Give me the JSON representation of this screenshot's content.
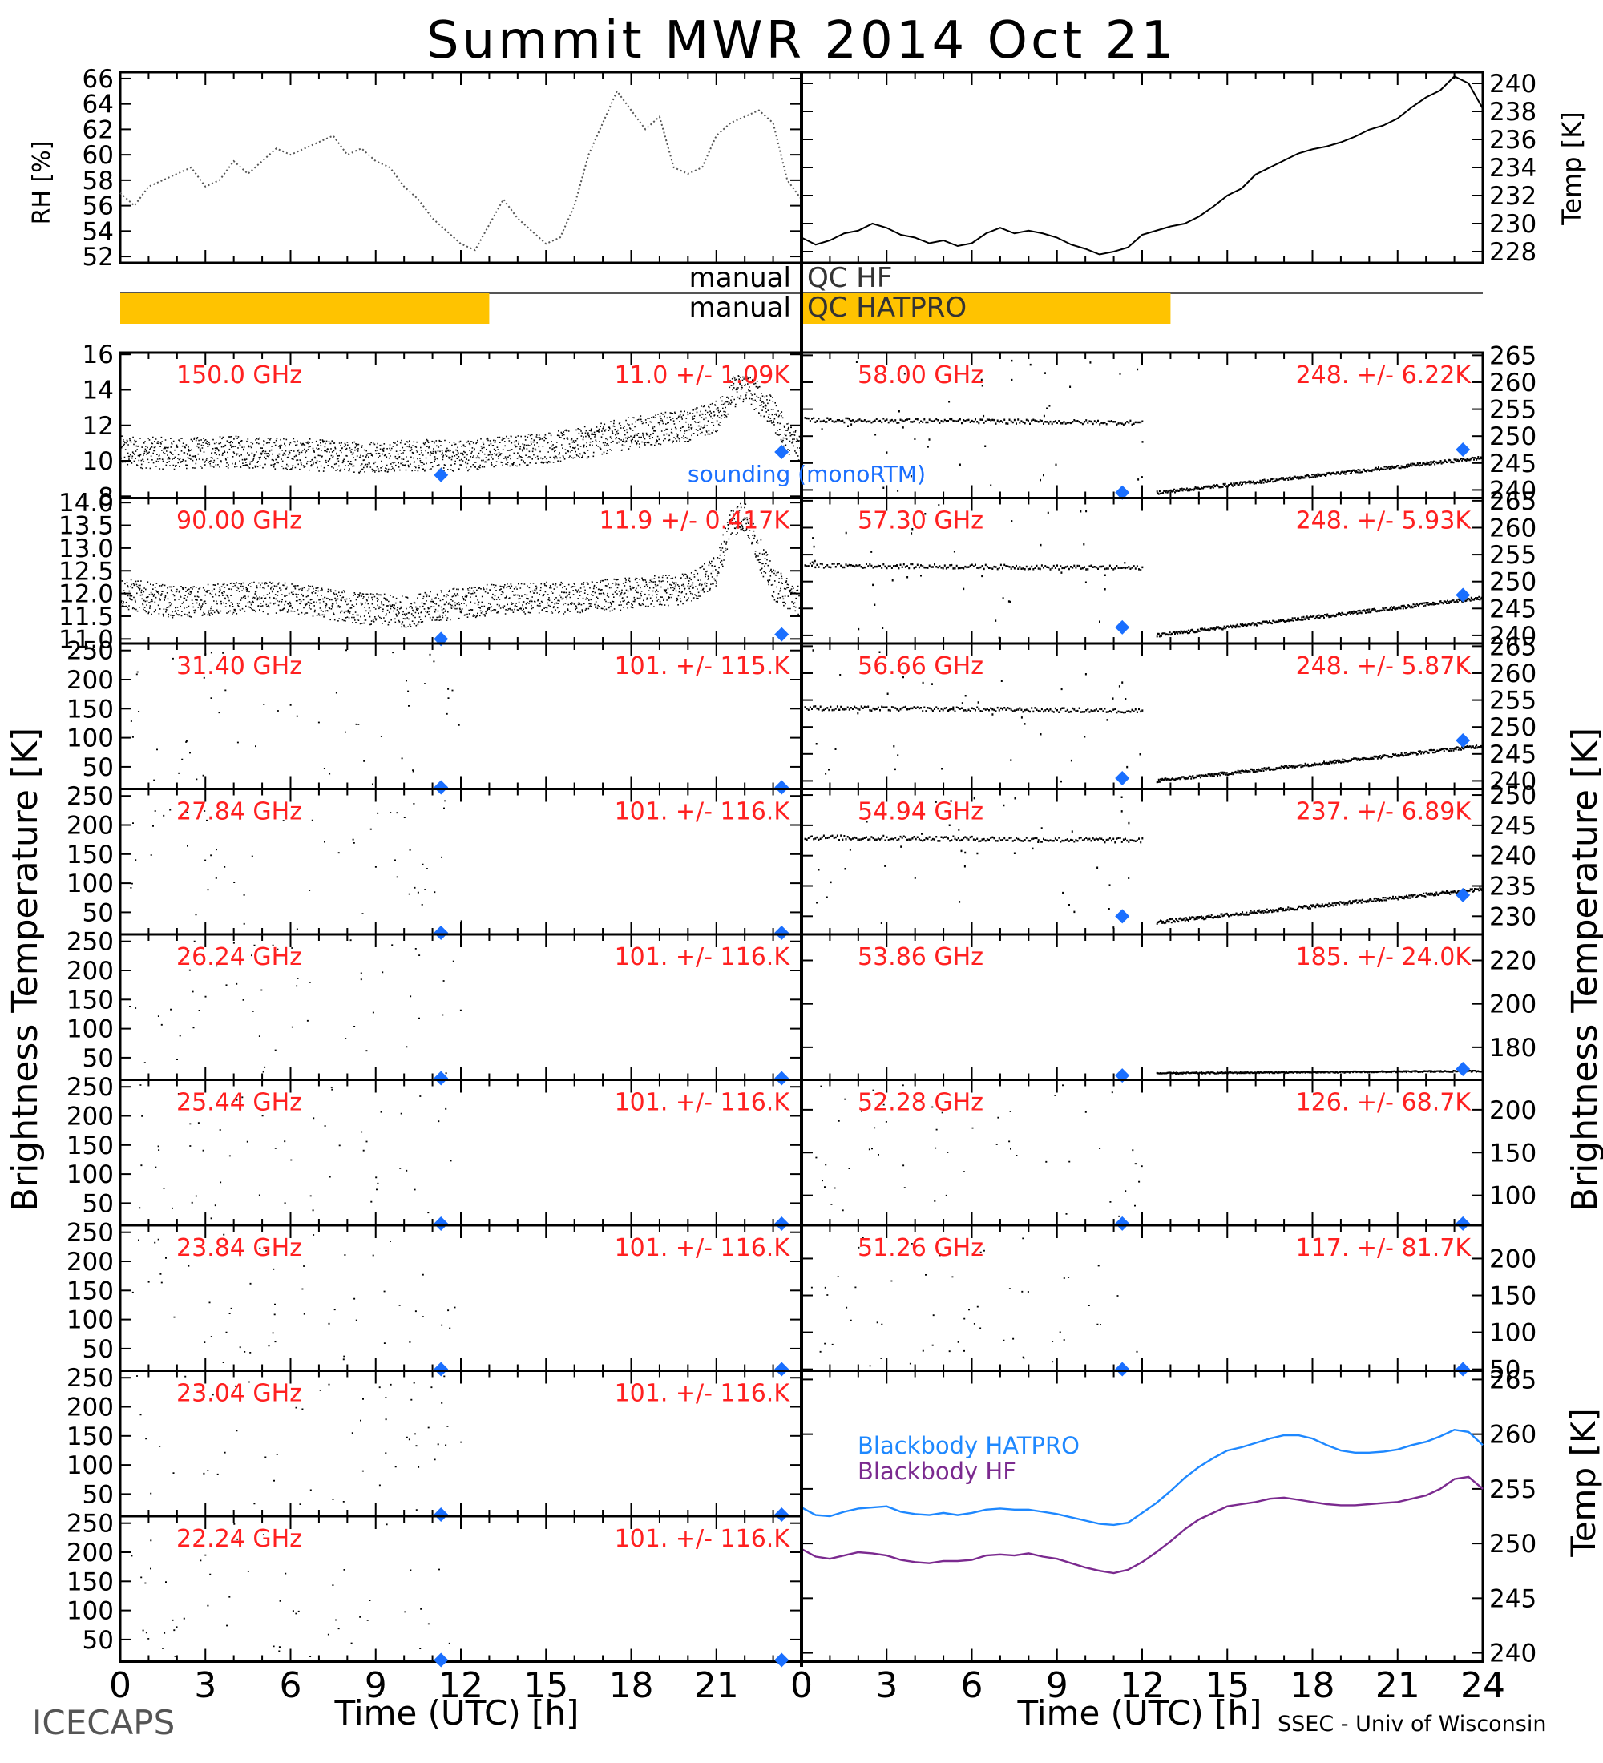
{
  "title": "Summit MWR 2014 Oct 21",
  "footer": {
    "left": "ICECAPS",
    "right": "SSEC - Univ of Wisconsin"
  },
  "colors": {
    "stats": "#ff2020",
    "sounding": "#1a6fff",
    "qc_bar": "#ffc300",
    "bb_hatpro": "#1e88ff",
    "bb_hf": "#7b2a8f",
    "data": "#000000"
  },
  "labels": {
    "ylabel_left": "Brightness Temperature [K]",
    "ylabel_right": "Brightness Temperature [K]",
    "xlabel": "Time (UTC) [h]",
    "rh_label": "RH [%]",
    "temp_label": "Temp [K]",
    "bb_temp_label": "Temp [K]",
    "sounding_label": "sounding (monoRTM)",
    "bb_hatpro_label": "Blackbody HATPRO",
    "bb_hf_label": "Blackbody HF"
  },
  "qc": {
    "hf": {
      "prefix": "manual",
      "label": "QC HF",
      "flag_ranges": []
    },
    "hatpro": {
      "prefix": "manual",
      "label": "QC HATPRO",
      "flag_ranges": [
        [
          0,
          13
        ]
      ]
    }
  },
  "chart_data": [
    {
      "type": "line",
      "panel": "rh",
      "ylabel": "RH [%]",
      "xlim": [
        0,
        24
      ],
      "ylim": [
        51.5,
        66.5
      ],
      "yticks": [
        52,
        54,
        56,
        58,
        60,
        62,
        64,
        66
      ],
      "x": [
        0,
        0.5,
        1,
        1.5,
        2,
        2.5,
        3,
        3.5,
        4,
        4.5,
        5,
        5.5,
        6,
        6.5,
        7,
        7.5,
        8,
        8.5,
        9,
        9.5,
        10,
        10.5,
        11,
        11.5,
        12,
        12.5,
        13,
        13.5,
        14,
        14.5,
        15,
        15.5,
        16,
        16.5,
        17,
        17.5,
        18,
        18.5,
        19,
        19.5,
        20,
        20.5,
        21,
        21.5,
        22,
        22.5,
        23,
        23.5,
        24
      ],
      "values": [
        57,
        56,
        57.5,
        58,
        58.5,
        59,
        57.5,
        58,
        59.5,
        58.5,
        59.5,
        60.5,
        60,
        60.5,
        61,
        61.5,
        60,
        60.5,
        59.5,
        59,
        57.5,
        56.5,
        55,
        54,
        53,
        52.5,
        54.5,
        56.5,
        55,
        54,
        53,
        53.5,
        56,
        60,
        62.5,
        65,
        63.5,
        62,
        63,
        59,
        58.5,
        59,
        61.5,
        62.5,
        63,
        63.5,
        62.5,
        58,
        56.5
      ]
    },
    {
      "type": "line",
      "panel": "air_temperature",
      "ylabel": "Temp [K]",
      "xlim": [
        0,
        24
      ],
      "ylim": [
        227.2,
        240.8
      ],
      "yticks": [
        228,
        230,
        232,
        234,
        236,
        238,
        240
      ],
      "x": [
        0,
        0.5,
        1,
        1.5,
        2,
        2.5,
        3,
        3.5,
        4,
        4.5,
        5,
        5.5,
        6,
        6.5,
        7,
        7.5,
        8,
        8.5,
        9,
        9.5,
        10,
        10.5,
        11,
        11.5,
        12,
        12.5,
        13,
        13.5,
        14,
        14.5,
        15,
        15.5,
        16,
        16.5,
        17,
        17.5,
        18,
        18.5,
        19,
        19.5,
        20,
        20.5,
        21,
        21.5,
        22,
        22.5,
        23,
        23.5,
        24
      ],
      "values": [
        229,
        228.5,
        228.8,
        229.3,
        229.5,
        230,
        229.7,
        229.2,
        229,
        228.6,
        228.8,
        228.4,
        228.6,
        229.3,
        229.7,
        229.3,
        229.5,
        229.3,
        229,
        228.5,
        228.2,
        227.8,
        228,
        228.3,
        229.2,
        229.5,
        229.8,
        230,
        230.5,
        231.2,
        232,
        232.5,
        233.5,
        234,
        234.5,
        235,
        235.3,
        235.5,
        235.8,
        236.2,
        236.7,
        237,
        237.5,
        238.3,
        239,
        239.5,
        240.5,
        240,
        238.2
      ]
    },
    {
      "type": "scatter",
      "instrument": "HF",
      "frequency": "150.0 GHz",
      "stats": "11.0 +/- 1.09K",
      "ylim": [
        7.9,
        16.1
      ],
      "yticks": [
        8,
        10,
        12,
        14,
        16
      ],
      "trend": {
        "x": [
          0,
          2,
          4,
          6,
          8,
          10,
          12,
          14,
          16,
          18,
          19,
          20,
          21,
          21.5,
          22,
          22.5,
          23,
          23.5,
          24
        ],
        "values": [
          10.5,
          10.4,
          10.5,
          10.4,
          10.2,
          10.3,
          10.3,
          10.6,
          10.9,
          11.6,
          11.8,
          12.0,
          12.5,
          13.8,
          14.2,
          13.5,
          12.6,
          11.3,
          10.8
        ]
      },
      "noise": 0.9,
      "sounding": [
        {
          "x": 11.3,
          "y": 9.2
        },
        {
          "x": 23.3,
          "y": 10.5
        }
      ]
    },
    {
      "type": "scatter",
      "instrument": "HF",
      "frequency": "90.00 GHz",
      "stats": "11.9 +/- 0.417K",
      "ylim": [
        10.9,
        14.1
      ],
      "yticks": [
        11.0,
        11.5,
        12.0,
        12.5,
        13.0,
        13.5,
        14.0
      ],
      "trend": {
        "x": [
          0,
          2,
          4,
          6,
          8,
          10,
          12,
          14,
          16,
          18,
          20,
          21,
          21.5,
          22,
          22.5,
          23,
          24
        ],
        "values": [
          12.0,
          11.8,
          11.9,
          11.9,
          11.7,
          11.6,
          11.8,
          11.9,
          11.9,
          12.0,
          12.1,
          12.5,
          13.6,
          13.7,
          12.9,
          12.2,
          11.8
        ]
      },
      "noise": 0.35,
      "sounding": [
        {
          "x": 11.3,
          "y": 11.0
        },
        {
          "x": 23.3,
          "y": 11.1
        }
      ]
    },
    {
      "type": "scatter",
      "instrument": "HATPRO",
      "frequency": "31.40 GHz",
      "stats": "101. +/- 115.K",
      "ylim": [
        12,
        262
      ],
      "yticks": [
        50,
        100,
        150,
        200,
        250
      ],
      "sounding": [
        {
          "x": 11.3,
          "y": 12
        },
        {
          "x": 23.3,
          "y": 12
        }
      ]
    },
    {
      "type": "scatter",
      "instrument": "HATPRO",
      "frequency": "27.84 GHz",
      "stats": "101. +/- 116.K",
      "ylim": [
        12,
        262
      ],
      "yticks": [
        50,
        100,
        150,
        200,
        250
      ],
      "sounding": [
        {
          "x": 11.3,
          "y": 12
        },
        {
          "x": 23.3,
          "y": 12
        }
      ]
    },
    {
      "type": "scatter",
      "instrument": "HATPRO",
      "frequency": "26.24 GHz",
      "stats": "101. +/- 116.K",
      "ylim": [
        12,
        262
      ],
      "yticks": [
        50,
        100,
        150,
        200,
        250
      ],
      "sounding": [
        {
          "x": 11.3,
          "y": 12
        },
        {
          "x": 23.3,
          "y": 12
        }
      ]
    },
    {
      "type": "scatter",
      "instrument": "HATPRO",
      "frequency": "25.44 GHz",
      "stats": "101. +/- 116.K",
      "ylim": [
        12,
        262
      ],
      "yticks": [
        50,
        100,
        150,
        200,
        250
      ],
      "sounding": [
        {
          "x": 11.3,
          "y": 12
        },
        {
          "x": 23.3,
          "y": 12
        }
      ]
    },
    {
      "type": "scatter",
      "instrument": "HATPRO",
      "frequency": "23.84 GHz",
      "stats": "101. +/- 116.K",
      "ylim": [
        12,
        262
      ],
      "yticks": [
        50,
        100,
        150,
        200,
        250
      ],
      "sounding": [
        {
          "x": 11.3,
          "y": 12
        },
        {
          "x": 23.3,
          "y": 12
        }
      ]
    },
    {
      "type": "scatter",
      "instrument": "HATPRO",
      "frequency": "23.04 GHz",
      "stats": "101. +/- 116.K",
      "ylim": [
        12,
        262
      ],
      "yticks": [
        50,
        100,
        150,
        200,
        250
      ],
      "sounding": [
        {
          "x": 11.3,
          "y": 12
        },
        {
          "x": 23.3,
          "y": 12
        }
      ]
    },
    {
      "type": "scatter",
      "instrument": "HATPRO",
      "frequency": "22.24 GHz",
      "stats": "101. +/- 116.K",
      "ylim": [
        12,
        262
      ],
      "yticks": [
        50,
        100,
        150,
        200,
        250
      ],
      "sounding": [
        {
          "x": 11.3,
          "y": 12
        },
        {
          "x": 23.3,
          "y": 12
        }
      ]
    },
    {
      "type": "scatter",
      "instrument": "HATPRO",
      "frequency": "58.00 GHz",
      "stats": "248. +/- 6.22K",
      "ylim": [
        238.5,
        265.5
      ],
      "yticks": [
        240,
        245,
        250,
        255,
        260,
        265
      ],
      "trend": {
        "x": [
          0,
          12
        ],
        "values": [
          253,
          252.5
        ]
      },
      "trend2": {
        "x": [
          12.5,
          24
        ],
        "values": [
          239.5,
          246
        ]
      },
      "sounding": [
        {
          "x": 11.3,
          "y": 239.5
        },
        {
          "x": 23.3,
          "y": 247.5
        }
      ]
    },
    {
      "type": "scatter",
      "instrument": "HATPRO",
      "frequency": "57.30 GHz",
      "stats": "248. +/- 5.93K",
      "ylim": [
        238.5,
        265.5
      ],
      "yticks": [
        240,
        245,
        250,
        255,
        260,
        265
      ],
      "trend": {
        "x": [
          0,
          12
        ],
        "values": [
          253,
          252.5
        ]
      },
      "trend2": {
        "x": [
          12.5,
          24
        ],
        "values": [
          240,
          247
        ]
      },
      "sounding": [
        {
          "x": 11.3,
          "y": 241.5
        },
        {
          "x": 23.3,
          "y": 247.5
        }
      ]
    },
    {
      "type": "scatter",
      "instrument": "HATPRO",
      "frequency": "56.66 GHz",
      "stats": "248. +/- 5.87K",
      "ylim": [
        238.5,
        265.5
      ],
      "yticks": [
        240,
        245,
        250,
        255,
        260,
        265
      ],
      "trend": {
        "x": [
          0,
          12
        ],
        "values": [
          253.5,
          253
        ]
      },
      "trend2": {
        "x": [
          12.5,
          24
        ],
        "values": [
          240,
          246.5
        ]
      },
      "sounding": [
        {
          "x": 11.3,
          "y": 240.5
        },
        {
          "x": 23.3,
          "y": 247.5
        }
      ]
    },
    {
      "type": "scatter",
      "instrument": "HATPRO",
      "frequency": "54.94 GHz",
      "stats": "237. +/- 6.89K",
      "ylim": [
        227,
        251
      ],
      "yticks": [
        230,
        235,
        240,
        245,
        250
      ],
      "trend": {
        "x": [
          0,
          12
        ],
        "values": [
          243,
          242.5
        ]
      },
      "trend2": {
        "x": [
          12.5,
          24
        ],
        "values": [
          229,
          234.5
        ]
      },
      "sounding": [
        {
          "x": 11.3,
          "y": 230
        },
        {
          "x": 23.3,
          "y": 233.5
        }
      ]
    },
    {
      "type": "scatter",
      "instrument": "HATPRO",
      "frequency": "53.86 GHz",
      "stats": "185. +/- 24.0K",
      "ylim": [
        165,
        232
      ],
      "yticks": [
        180,
        200,
        220
      ],
      "trend2": {
        "x": [
          12.5,
          24
        ],
        "values": [
          168,
          169
        ]
      },
      "sounding": [
        {
          "x": 11.3,
          "y": 167
        },
        {
          "x": 23.3,
          "y": 170
        }
      ]
    },
    {
      "type": "scatter",
      "instrument": "HATPRO",
      "frequency": "52.28 GHz",
      "stats": "126. +/- 68.7K",
      "ylim": [
        65,
        235
      ],
      "yticks": [
        100,
        150,
        200
      ],
      "sounding": [
        {
          "x": 11.3,
          "y": 67
        },
        {
          "x": 23.3,
          "y": 67
        }
      ]
    },
    {
      "type": "scatter",
      "instrument": "HATPRO",
      "frequency": "51.26 GHz",
      "stats": "117. +/- 81.7K",
      "ylim": [
        48,
        245
      ],
      "yticks": [
        50,
        100,
        150,
        200
      ],
      "sounding": [
        {
          "x": 11.3,
          "y": 49
        },
        {
          "x": 23.3,
          "y": 49
        }
      ]
    },
    {
      "type": "line",
      "panel": "blackbody",
      "ylabel": "Temp [K]",
      "xlim": [
        0,
        24
      ],
      "ylim": [
        239.2,
        265.8
      ],
      "yticks": [
        240,
        245,
        250,
        255,
        260,
        265
      ],
      "x": [
        0,
        0.5,
        1,
        1.5,
        2,
        2.5,
        3,
        3.5,
        4,
        4.5,
        5,
        5.5,
        6,
        6.5,
        7,
        7.5,
        8,
        8.5,
        9,
        9.5,
        10,
        10.5,
        11,
        11.5,
        12,
        12.5,
        13,
        13.5,
        14,
        14.5,
        15,
        15.5,
        16,
        16.5,
        17,
        17.5,
        18,
        18.5,
        19,
        19.5,
        20,
        20.5,
        21,
        21.5,
        22,
        22.5,
        23,
        23.5,
        24
      ],
      "series": [
        {
          "name": "Blackbody HATPRO",
          "values": [
            253.3,
            252.6,
            252.5,
            252.9,
            253.2,
            253.3,
            253.4,
            252.9,
            252.7,
            252.6,
            252.8,
            252.6,
            252.8,
            253.1,
            253.2,
            253.1,
            253.1,
            252.9,
            252.7,
            252.4,
            252.1,
            251.8,
            251.7,
            251.9,
            252.8,
            253.7,
            254.8,
            256.0,
            257.0,
            257.8,
            258.5,
            258.8,
            259.2,
            259.6,
            259.9,
            259.9,
            259.6,
            259.0,
            258.5,
            258.3,
            258.3,
            258.4,
            258.6,
            259.0,
            259.3,
            259.8,
            260.4,
            260.2,
            259.0
          ]
        },
        {
          "name": "Blackbody HF",
          "values": [
            249.5,
            248.8,
            248.6,
            248.9,
            249.2,
            249.1,
            248.9,
            248.5,
            248.3,
            248.2,
            248.4,
            248.4,
            248.5,
            248.9,
            249.0,
            248.9,
            249.1,
            248.8,
            248.6,
            248.2,
            247.8,
            247.5,
            247.3,
            247.6,
            248.3,
            249.2,
            250.2,
            251.3,
            252.2,
            252.8,
            253.4,
            253.6,
            253.8,
            254.1,
            254.2,
            254.0,
            253.8,
            253.6,
            253.5,
            253.5,
            253.6,
            253.7,
            253.8,
            254.1,
            254.4,
            255.0,
            255.9,
            256.1,
            255.0
          ]
        }
      ]
    }
  ],
  "x_ticks": [
    "0",
    "3",
    "6",
    "9",
    "12",
    "15",
    "18",
    "21",
    "24"
  ]
}
